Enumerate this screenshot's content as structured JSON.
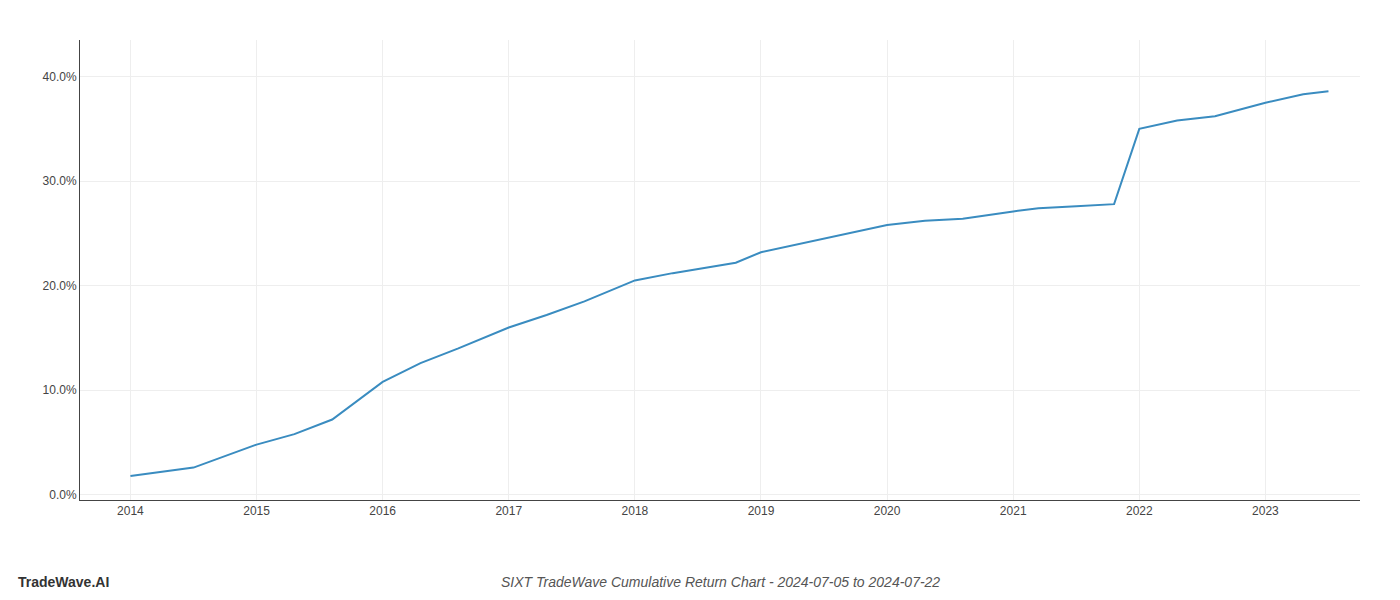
{
  "chart_data": {
    "type": "line",
    "title": "SIXT TradeWave Cumulative Return Chart - 2024-07-05 to 2024-07-22",
    "annotations": [
      "TradeWave.AI"
    ],
    "x": [
      2014.0,
      2014.2,
      2014.5,
      2015.0,
      2015.3,
      2015.6,
      2016.0,
      2016.3,
      2016.6,
      2017.0,
      2017.3,
      2017.6,
      2018.0,
      2018.3,
      2018.5,
      2018.8,
      2019.0,
      2019.3,
      2019.6,
      2020.0,
      2020.3,
      2020.6,
      2021.0,
      2021.2,
      2021.5,
      2021.8,
      2022.0,
      2022.3,
      2022.6,
      2023.0,
      2023.3,
      2023.5
    ],
    "values": [
      0.018,
      0.021,
      0.026,
      0.048,
      0.058,
      0.072,
      0.108,
      0.126,
      0.14,
      0.16,
      0.172,
      0.185,
      0.205,
      0.212,
      0.216,
      0.222,
      0.232,
      0.24,
      0.248,
      0.258,
      0.262,
      0.264,
      0.271,
      0.274,
      0.276,
      0.278,
      0.35,
      0.358,
      0.362,
      0.375,
      0.383,
      0.386
    ],
    "color": "#3a8cc0",
    "xlim": [
      2013.6,
      2023.75
    ],
    "ylim": [
      -0.005,
      0.435
    ],
    "xticks": [
      2014,
      2015,
      2016,
      2017,
      2018,
      2019,
      2020,
      2021,
      2022,
      2023
    ],
    "yticks": [
      {
        "value": 0.0,
        "label": "0.0%"
      },
      {
        "value": 0.1,
        "label": "10.0%"
      },
      {
        "value": 0.2,
        "label": "20.0%"
      },
      {
        "value": 0.3,
        "label": "30.0%"
      },
      {
        "value": 0.4,
        "label": "40.0%"
      }
    ],
    "grid": true
  }
}
